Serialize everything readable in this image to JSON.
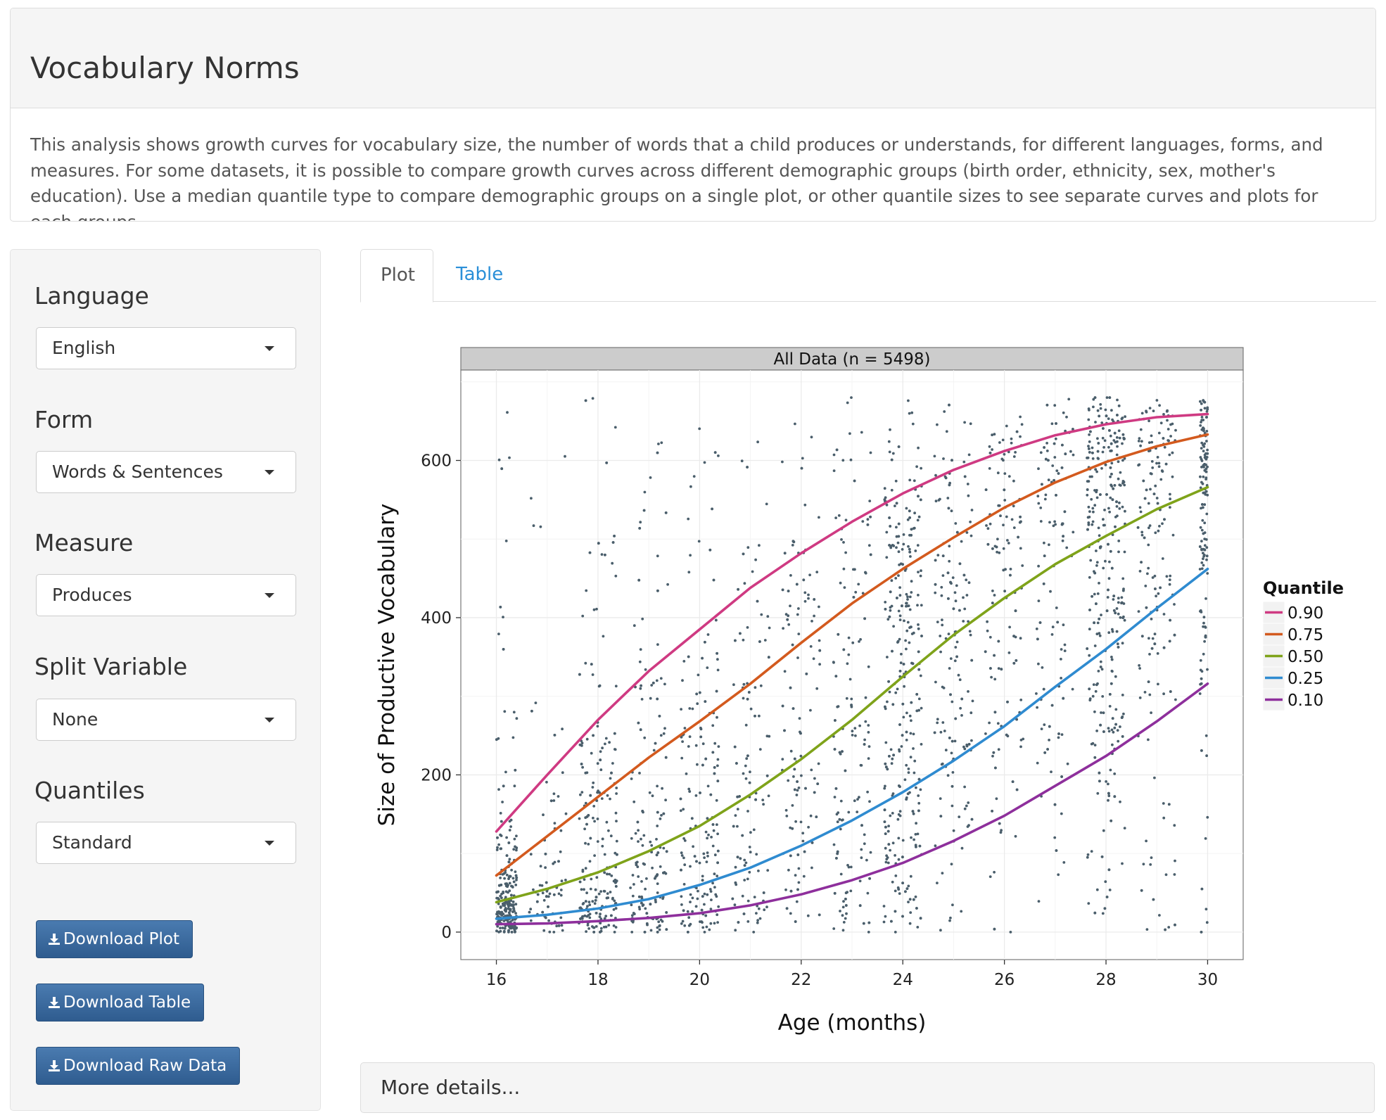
{
  "header": {
    "title": "Vocabulary Norms",
    "description": "This analysis shows growth curves for vocabulary size, the number of words that a child produces or understands, for different languages, forms, and measures. For some datasets, it is possible to compare growth curves across different demographic groups (birth order, ethnicity, sex, mother's education). Use a median quantile type to compare demographic groups on a single plot, or other quantile sizes to see separate curves and plots for each groups."
  },
  "sidebar": {
    "language": {
      "label": "Language",
      "value": "English"
    },
    "form": {
      "label": "Form",
      "value": "Words & Sentences"
    },
    "measure": {
      "label": "Measure",
      "value": "Produces"
    },
    "split": {
      "label": "Split Variable",
      "value": "None"
    },
    "quantiles": {
      "label": "Quantiles",
      "value": "Standard"
    },
    "buttons": {
      "download_plot": "Download Plot",
      "download_table": "Download Table",
      "download_raw": "Download Raw Data"
    }
  },
  "tabs": {
    "plot": "Plot",
    "table": "Table",
    "active": "Plot"
  },
  "details": {
    "label": "More details..."
  },
  "chart_data": {
    "type": "scatter",
    "facet_title": "All Data (n = 5498)",
    "xlabel": "Age (months)",
    "ylabel": "Size of Productive Vocabulary",
    "xlim": [
      15.3,
      30.7
    ],
    "ylim": [
      -35,
      715
    ],
    "x_ticks": [
      16,
      18,
      20,
      22,
      24,
      26,
      28,
      30
    ],
    "y_ticks": [
      0,
      200,
      400,
      600
    ],
    "grid": true,
    "point_color": "#4a5e6b",
    "n_points": 5498,
    "legend": {
      "title": "Quantile",
      "placement": "right"
    },
    "x": [
      16,
      17,
      18,
      19,
      20,
      21,
      22,
      23,
      24,
      25,
      26,
      27,
      28,
      29,
      30
    ],
    "series": [
      {
        "name": "0.90",
        "color": "#cf3a82",
        "values": [
          128,
          200,
          270,
          332,
          385,
          438,
          482,
          522,
          558,
          588,
          612,
          632,
          646,
          655,
          659
        ]
      },
      {
        "name": "0.75",
        "color": "#d35a1e",
        "values": [
          72,
          122,
          172,
          222,
          268,
          316,
          368,
          418,
          462,
          502,
          540,
          572,
          598,
          618,
          633
        ]
      },
      {
        "name": "0.50",
        "color": "#7fa31a",
        "values": [
          38,
          55,
          76,
          103,
          135,
          175,
          220,
          270,
          325,
          378,
          425,
          468,
          504,
          538,
          566
        ]
      },
      {
        "name": "0.25",
        "color": "#2f8bd0",
        "values": [
          17,
          22,
          30,
          42,
          60,
          82,
          110,
          142,
          178,
          218,
          262,
          312,
          360,
          412,
          462
        ]
      },
      {
        "name": "0.10",
        "color": "#8e2f9c",
        "values": [
          10,
          11,
          14,
          18,
          24,
          34,
          48,
          66,
          88,
          116,
          148,
          186,
          224,
          268,
          316
        ]
      }
    ]
  },
  "icons": {
    "dropdown": "caret-down-icon",
    "download": "download-icon"
  }
}
